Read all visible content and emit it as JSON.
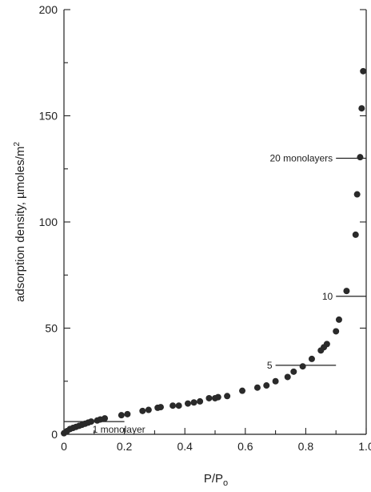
{
  "chart_data": {
    "type": "scatter",
    "title": "",
    "xlabel_main": "P/P",
    "xlabel_sub": "o",
    "ylabel": "adsorption density, µmoles/m",
    "ylabel_sup": "2",
    "xlim": [
      0,
      1.0
    ],
    "ylim": [
      0,
      200
    ],
    "x_ticks": [
      0,
      0.2,
      0.4,
      0.6,
      0.8,
      1.0
    ],
    "x_tick_labels": [
      "0",
      "0.2",
      "0.4",
      "0.6",
      "0.8",
      "1.0"
    ],
    "y_ticks": [
      0,
      50,
      100,
      150,
      200
    ],
    "y_tick_labels": [
      "0",
      "50",
      "100",
      "150",
      "200"
    ],
    "grid": false,
    "legend": "none",
    "series": [
      {
        "points": [
          [
            0.0,
            0.5
          ],
          [
            0.01,
            1.5
          ],
          [
            0.02,
            2.5
          ],
          [
            0.03,
            3.0
          ],
          [
            0.04,
            3.5
          ],
          [
            0.05,
            4.0
          ],
          [
            0.06,
            4.5
          ],
          [
            0.07,
            5.0
          ],
          [
            0.08,
            5.5
          ],
          [
            0.09,
            6.0
          ],
          [
            0.11,
            6.5
          ],
          [
            0.12,
            7.0
          ],
          [
            0.135,
            7.5
          ],
          [
            0.19,
            9.0
          ],
          [
            0.21,
            9.5
          ],
          [
            0.26,
            11.0
          ],
          [
            0.28,
            11.5
          ],
          [
            0.31,
            12.5
          ],
          [
            0.32,
            12.8
          ],
          [
            0.36,
            13.5
          ],
          [
            0.38,
            13.5
          ],
          [
            0.41,
            14.5
          ],
          [
            0.43,
            15.0
          ],
          [
            0.45,
            15.5
          ],
          [
            0.48,
            17.0
          ],
          [
            0.5,
            17.0
          ],
          [
            0.51,
            17.5
          ],
          [
            0.54,
            18.0
          ],
          [
            0.59,
            20.5
          ],
          [
            0.64,
            22.0
          ],
          [
            0.67,
            23.0
          ],
          [
            0.7,
            25.0
          ],
          [
            0.74,
            27.0
          ],
          [
            0.76,
            29.5
          ],
          [
            0.79,
            32.0
          ],
          [
            0.82,
            35.5
          ],
          [
            0.85,
            39.5
          ],
          [
            0.86,
            41.0
          ],
          [
            0.87,
            42.5
          ],
          [
            0.9,
            48.5
          ],
          [
            0.91,
            54.0
          ],
          [
            0.935,
            67.5
          ],
          [
            0.965,
            94.0
          ],
          [
            0.97,
            113.0
          ],
          [
            0.98,
            130.5
          ],
          [
            0.985,
            153.5
          ],
          [
            0.99,
            171.0
          ]
        ]
      }
    ],
    "reference_lines": [
      {
        "label": "1 monolayer",
        "y": 6,
        "x_range": [
          0,
          0.2
        ]
      },
      {
        "label": "5",
        "y": 32.5,
        "x_range": [
          0.7,
          0.9
        ]
      },
      {
        "label": "10",
        "y": 65,
        "x_range": [
          0.9,
          1.0
        ]
      },
      {
        "label": "20 monolayers",
        "y": 130,
        "x_range": [
          0.9,
          1.0
        ]
      }
    ]
  }
}
